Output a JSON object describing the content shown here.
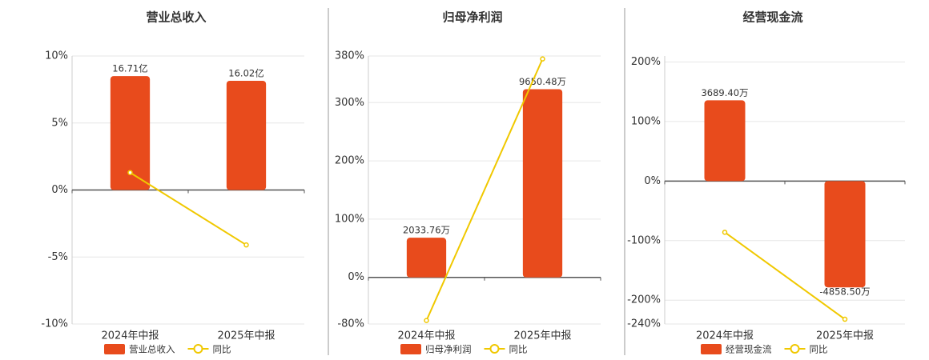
{
  "chart_data": [
    {
      "type": "bar",
      "title": "营业总收入",
      "categories": [
        "2024年中报",
        "2025年中报"
      ],
      "series": [
        {
          "name": "营业总收入",
          "type": "bar",
          "color": "#e84b1c",
          "values": [
            16.71,
            16.02
          ],
          "value_labels": [
            "16.71亿",
            "16.02亿"
          ]
        },
        {
          "name": "同比",
          "type": "line",
          "color": "#f0c800",
          "values": [
            1.3,
            -4.1
          ]
        }
      ],
      "ylim": [
        -10,
        10
      ],
      "yticks": [
        {
          "value": -10,
          "label": "-10%"
        },
        {
          "value": -5,
          "label": "-5%"
        },
        {
          "value": 0,
          "label": "0%"
        },
        {
          "value": 5,
          "label": "5%"
        },
        {
          "value": 10,
          "label": "10%"
        }
      ],
      "grid": true
    },
    {
      "type": "bar",
      "title": "归母净利润",
      "categories": [
        "2024年中报",
        "2025年中报"
      ],
      "series": [
        {
          "name": "归母净利润",
          "type": "bar",
          "color": "#e84b1c",
          "values": [
            2033.76,
            9650.48
          ],
          "value_labels": [
            "2033.76万",
            "9650.48万"
          ]
        },
        {
          "name": "同比",
          "type": "line",
          "color": "#f0c800",
          "values": [
            -74,
            375
          ]
        }
      ],
      "ylim": [
        -80,
        380
      ],
      "yticks": [
        {
          "value": -80,
          "label": "-80%"
        },
        {
          "value": 0,
          "label": "0%"
        },
        {
          "value": 100,
          "label": "100%"
        },
        {
          "value": 200,
          "label": "200%"
        },
        {
          "value": 300,
          "label": "300%"
        },
        {
          "value": 380,
          "label": "380%"
        }
      ],
      "grid": true
    },
    {
      "type": "bar",
      "title": "经营现金流",
      "categories": [
        "2024年中报",
        "2025年中报"
      ],
      "series": [
        {
          "name": "经营现金流",
          "type": "bar",
          "color": "#e84b1c",
          "values": [
            3689.4,
            -4858.5
          ],
          "value_labels": [
            "3689.40万",
            "-4858.50万"
          ]
        },
        {
          "name": "同比",
          "type": "line",
          "color": "#f0c800",
          "values": [
            -86,
            -232
          ]
        }
      ],
      "ylim": [
        -240,
        210
      ],
      "yticks": [
        {
          "value": -240,
          "label": "-240%"
        },
        {
          "value": -200,
          "label": "-200%"
        },
        {
          "value": -100,
          "label": "-100%"
        },
        {
          "value": 0,
          "label": "0%"
        },
        {
          "value": 100,
          "label": "100%"
        },
        {
          "value": 200,
          "label": "200%"
        }
      ],
      "grid": true
    }
  ]
}
